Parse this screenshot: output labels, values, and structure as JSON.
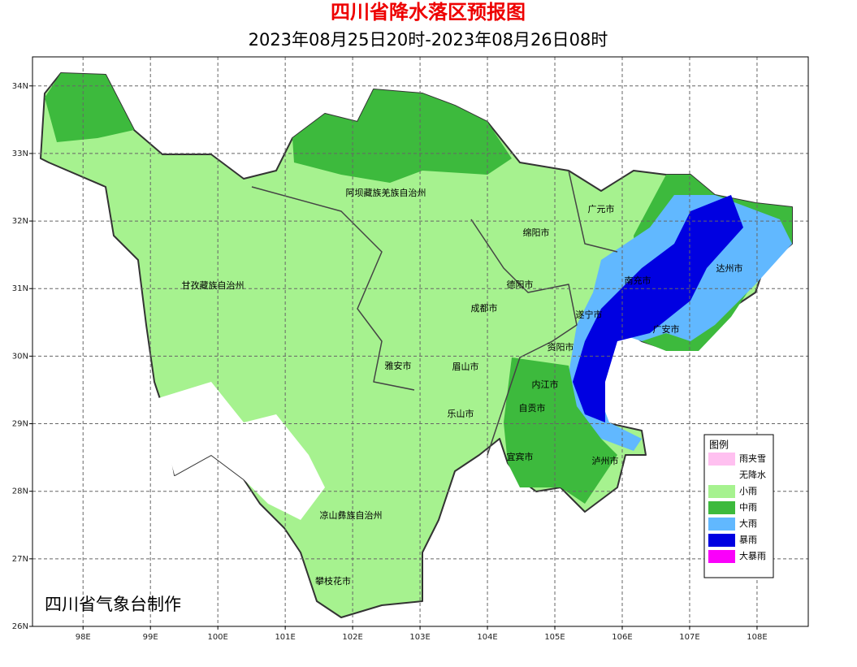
{
  "map": {
    "title": "四川省降水落区预报图",
    "subtitle": "2023年08月25日20时-2023年08月26日08时",
    "xlim": [
      97.25,
      108.76
    ],
    "ylim": [
      26,
      34.43
    ],
    "xticks": [
      {
        "value": 98,
        "label": "98E"
      },
      {
        "value": 99,
        "label": "99E"
      },
      {
        "value": 100,
        "label": "100E"
      },
      {
        "value": 101,
        "label": "101E"
      },
      {
        "value": 102,
        "label": "102E"
      },
      {
        "value": 103,
        "label": "103E"
      },
      {
        "value": 104,
        "label": "104E"
      },
      {
        "value": 105,
        "label": "105E"
      },
      {
        "value": 106,
        "label": "106E"
      },
      {
        "value": 107,
        "label": "107E"
      },
      {
        "value": 108,
        "label": "108E"
      }
    ],
    "yticks": [
      {
        "value": 26,
        "label": "26N"
      },
      {
        "value": 27,
        "label": "27N"
      },
      {
        "value": 28,
        "label": "28N"
      },
      {
        "value": 29,
        "label": "29N"
      },
      {
        "value": 30,
        "label": "30N"
      },
      {
        "value": 31,
        "label": "31N"
      },
      {
        "value": 32,
        "label": "32N"
      },
      {
        "value": 33,
        "label": "33N"
      },
      {
        "value": 34,
        "label": "34N"
      }
    ],
    "grid": true,
    "regions": [
      "阿坝藏族羌族自治州",
      "广元市",
      "绵阳市",
      "达州市",
      "甘孜藏族自治州",
      "德阳市",
      "南充市",
      "成都市",
      "遂宁市",
      "广安市",
      "资阳市",
      "雅安市",
      "眉山市",
      "内江市",
      "自贡市",
      "乐山市",
      "宜宾市",
      "泸州市",
      "凉山彝族自治州",
      "攀枝花市"
    ],
    "legend": {
      "title": "图例",
      "items": [
        {
          "name": "雨夹雪",
          "color": "#ffc0f0"
        },
        {
          "name": "无降水",
          "color": "#ffffff"
        },
        {
          "name": "小雨",
          "color": "#a6f28f"
        },
        {
          "name": "中雨",
          "color": "#3dba3d"
        },
        {
          "name": "大雨",
          "color": "#61b8ff"
        },
        {
          "name": "暴雨",
          "color": "#0000e1"
        },
        {
          "name": "大暴雨",
          "color": "#fa00fa"
        }
      ]
    },
    "credit": "四川省气象台制作"
  }
}
